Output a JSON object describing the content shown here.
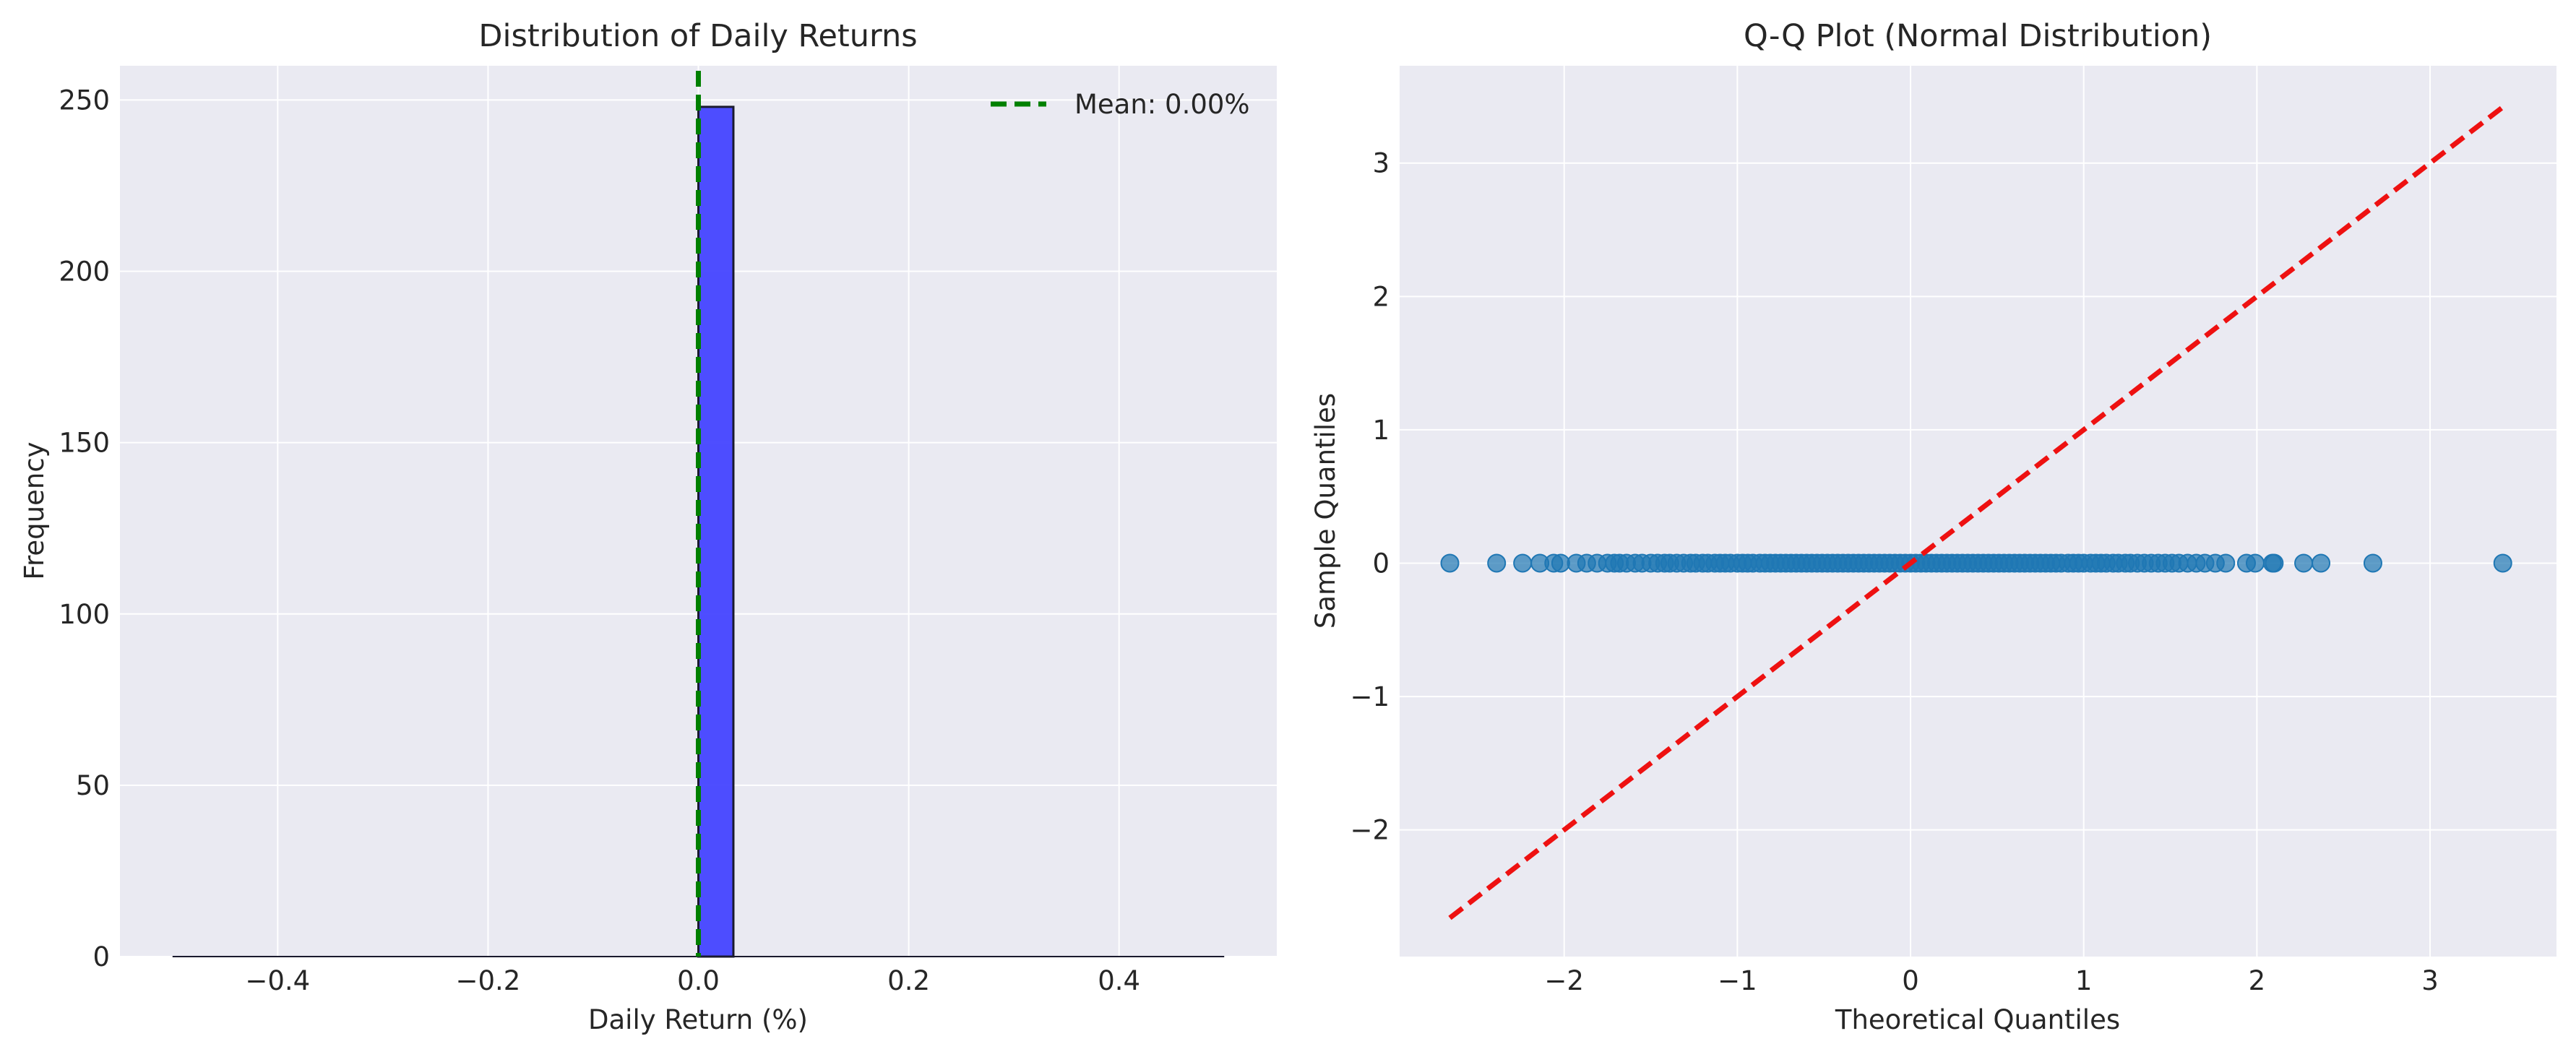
{
  "chart_data": [
    {
      "type": "bar",
      "title": "Distribution of Daily Returns",
      "xlabel": "Daily Return (%)",
      "ylabel": "Frequency",
      "xlim": [
        -0.55,
        0.55
      ],
      "ylim": [
        0,
        260
      ],
      "xticks": [
        -0.4,
        -0.2,
        0.0,
        0.2,
        0.4
      ],
      "xtick_labels": [
        "−0.4",
        "−0.2",
        "0.0",
        "0.2",
        "0.4"
      ],
      "yticks": [
        0,
        50,
        100,
        150,
        200,
        250
      ],
      "ytick_labels": [
        "0",
        "50",
        "100",
        "150",
        "200",
        "250"
      ],
      "grid": true,
      "bin_range": [
        -0.5,
        0.5
      ],
      "bins": [
        {
          "x0": 0.0,
          "x1": 0.0333,
          "count": 248
        }
      ],
      "bar_color": "#4444ff",
      "bar_edge_color": "#1a1a2e",
      "mean_line": {
        "x": 0.0,
        "color": "#008000",
        "label": "Mean: 0.00%"
      },
      "legend_position": "upper right"
    },
    {
      "type": "scatter",
      "title": "Q-Q Plot (Normal Distribution)",
      "xlabel": "Theoretical Quantiles",
      "ylabel": "Sample Quantiles",
      "xlim": [
        -2.95,
        3.73
      ],
      "ylim": [
        -2.95,
        3.73
      ],
      "xticks": [
        -2,
        -1,
        0,
        1,
        2,
        3
      ],
      "xtick_labels": [
        "−2",
        "−1",
        "0",
        "1",
        "2",
        "3"
      ],
      "yticks": [
        -2,
        -1,
        0,
        1,
        2,
        3
      ],
      "ytick_labels": [
        "−2",
        "−1",
        "0",
        "1",
        "2",
        "3"
      ],
      "grid": true,
      "point_color": "#1f77b4",
      "reference_line": {
        "x": [
          -2.66,
          3.42
        ],
        "y": [
          -2.66,
          3.42
        ],
        "color": "#ee1111"
      },
      "points": {
        "x": [
          -2.66,
          -2.39,
          -2.24,
          -2.14,
          -2.06,
          -2.02,
          -1.93,
          -1.87,
          -1.81,
          -1.75,
          -1.71,
          -1.68,
          -1.64,
          -1.59,
          -1.55,
          -1.5,
          -1.46,
          -1.42,
          -1.39,
          -1.35,
          -1.31,
          -1.27,
          -1.24,
          -1.2,
          -1.17,
          -1.13,
          -1.1,
          -1.07,
          -1.04,
          -1.0,
          -0.97,
          -0.94,
          -0.91,
          -0.87,
          -0.84,
          -0.81,
          -0.78,
          -0.75,
          -0.72,
          -0.69,
          -0.66,
          -0.63,
          -0.6,
          -0.57,
          -0.54,
          -0.51,
          -0.48,
          -0.45,
          -0.42,
          -0.39,
          -0.36,
          -0.33,
          -0.3,
          -0.27,
          -0.24,
          -0.21,
          -0.18,
          -0.15,
          -0.12,
          -0.09,
          -0.06,
          -0.03,
          0.0,
          0.03,
          0.06,
          0.09,
          0.12,
          0.15,
          0.18,
          0.21,
          0.24,
          0.27,
          0.3,
          0.33,
          0.36,
          0.39,
          0.42,
          0.45,
          0.48,
          0.51,
          0.54,
          0.57,
          0.6,
          0.63,
          0.66,
          0.69,
          0.72,
          0.75,
          0.78,
          0.81,
          0.84,
          0.87,
          0.91,
          0.94,
          0.97,
          1.0,
          1.04,
          1.07,
          1.1,
          1.13,
          1.17,
          1.2,
          1.24,
          1.27,
          1.31,
          1.35,
          1.39,
          1.43,
          1.47,
          1.51,
          1.55,
          1.6,
          1.65,
          1.7,
          1.76,
          1.82,
          1.94,
          1.99,
          2.09,
          2.1,
          2.27,
          2.37,
          2.67,
          3.42
        ],
        "y": 0
      }
    }
  ]
}
